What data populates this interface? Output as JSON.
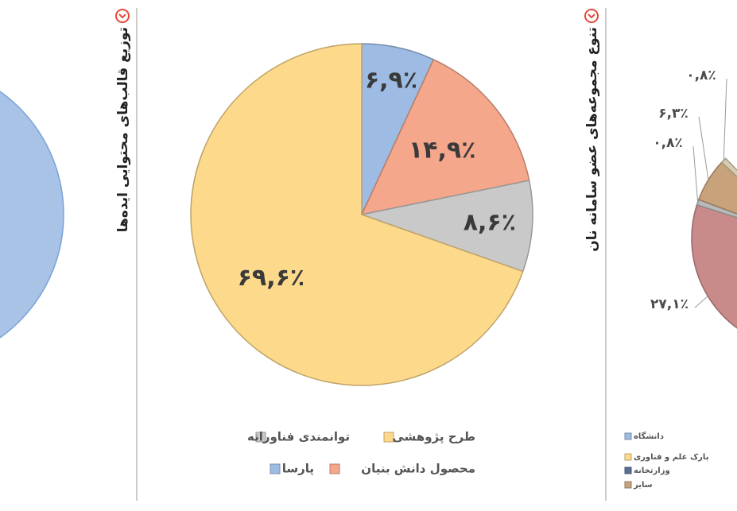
{
  "chart_data": [
    {
      "type": "pie",
      "title": "توزیع قالب‌های محتوایی ایده‌ها",
      "categories": [
        "پارسا",
        "محصول دانش بنیان",
        "توانمندی فناورانه",
        "طرح پژوهشی"
      ],
      "values": [
        6.9,
        14.9,
        8.6,
        69.6
      ],
      "value_labels": [
        "۶,۹٪",
        "۱۴,۹٪",
        "۸,۶٪",
        "۶۹,۶٪"
      ],
      "colors": [
        "#9dbbe3",
        "#f5a78c",
        "#c9c9c9",
        "#fdd98c"
      ]
    },
    {
      "type": "pie",
      "title": "تنوع مجموعه‌های عضو سامانه نان",
      "categories": [
        "دانشگاه",
        "پارک علم و فناوری",
        "وزارتخانه",
        "سایر"
      ],
      "legend_colors": [
        "#9dbbe3",
        "#fdd98c",
        "#5b6f95",
        "#c8a27a"
      ],
      "values": [
        27.1,
        0.8,
        6.3,
        0.8
      ],
      "value_labels": [
        "۲۷,۱٪",
        "۰,۸٪",
        "۶,۳٪",
        "۰,۸٪"
      ],
      "colors": [
        "#c98a8a",
        "#b9b9b9",
        "#c8a27a",
        "#d9cdb0"
      ]
    }
  ]
}
